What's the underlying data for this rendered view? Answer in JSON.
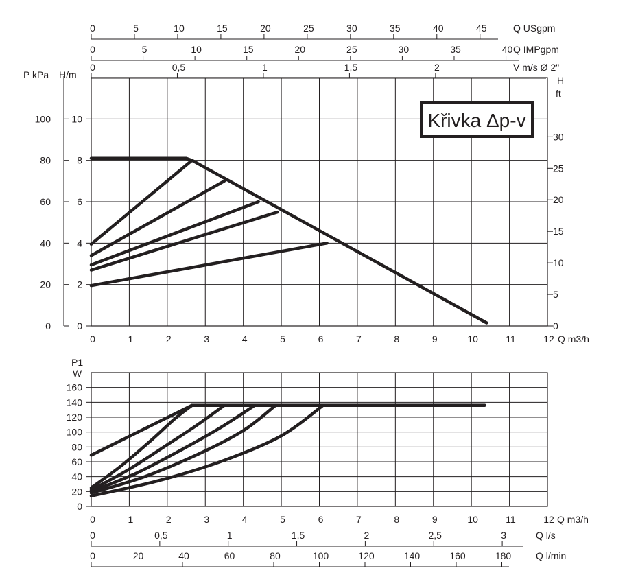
{
  "chart_data": [
    {
      "type": "line",
      "name": "pump-head-curve",
      "annotation": "Křivka Δp-v",
      "x_axis": {
        "label": "Q m3/h",
        "range": [
          0,
          12
        ],
        "ticks": [
          "0",
          "1",
          "2",
          "3",
          "4",
          "5",
          "6",
          "7",
          "8",
          "9",
          "10",
          "11",
          "12"
        ]
      },
      "y_axis_left_kpa": {
        "label": "P kPa",
        "range": [
          0,
          120
        ],
        "ticks": [
          "0",
          "20",
          "40",
          "60",
          "80",
          "100"
        ]
      },
      "y_axis_left_m": {
        "label": "H/m",
        "range": [
          0,
          12
        ],
        "ticks": [
          "0",
          "2",
          "4",
          "6",
          "8",
          "10"
        ]
      },
      "y_axis_right_ft": {
        "label_line1": "H",
        "label_line2": "ft",
        "range": [
          0,
          39.4
        ],
        "ticks": [
          "0",
          "5",
          "10",
          "15",
          "20",
          "25",
          "30"
        ]
      },
      "top_axes": [
        {
          "label": "Q USgpm",
          "range": [
            0,
            52.8
          ],
          "ticks": [
            "0",
            "5",
            "10",
            "15",
            "20",
            "25",
            "30",
            "35",
            "40",
            "45"
          ]
        },
        {
          "label": "Q IMPgpm",
          "range": [
            0,
            44
          ],
          "ticks": [
            "0",
            "5",
            "10",
            "15",
            "20",
            "25",
            "30",
            "35",
            "40"
          ]
        },
        {
          "label": "V m/s Ø 2\"",
          "range": [
            0,
            2.65
          ],
          "ticks": [
            "0",
            "0,5",
            "1",
            "1,5",
            "2"
          ]
        }
      ],
      "grid": true,
      "series": [
        {
          "x": [
            0,
            2.5,
            2.65,
            10.4
          ],
          "y": [
            8.1,
            8.1,
            8.0,
            0.15
          ]
        },
        {
          "x": [
            0,
            2.65
          ],
          "y": [
            3.95,
            8.0
          ]
        },
        {
          "x": [
            0,
            3.5
          ],
          "y": [
            3.4,
            7.0
          ]
        },
        {
          "x": [
            0,
            4.4
          ],
          "y": [
            2.95,
            6.0
          ]
        },
        {
          "x": [
            0,
            4.9
          ],
          "y": [
            2.7,
            5.5
          ]
        },
        {
          "x": [
            0,
            6.2
          ],
          "y": [
            1.95,
            4.0
          ]
        }
      ]
    },
    {
      "type": "line",
      "name": "pump-power-curve",
      "x_axis": {
        "label": "Q m3/h",
        "range": [
          0,
          12
        ],
        "ticks": [
          "0",
          "1",
          "2",
          "3",
          "4",
          "5",
          "6",
          "7",
          "8",
          "9",
          "10",
          "11",
          "12"
        ]
      },
      "y_axis": {
        "label_line1": "P1",
        "label_line2": "W",
        "range": [
          0,
          180
        ],
        "ticks": [
          "0",
          "20",
          "40",
          "60",
          "80",
          "100",
          "120",
          "140",
          "160"
        ]
      },
      "bottom_axes": [
        {
          "label": "Q l/s",
          "range": [
            0,
            3.33
          ],
          "ticks": [
            "0",
            "0,5",
            "1",
            "1,5",
            "2",
            "2,5",
            "3"
          ]
        },
        {
          "label": "Q l/min",
          "range": [
            0,
            200
          ],
          "ticks": [
            "0",
            "20",
            "40",
            "60",
            "80",
            "100",
            "120",
            "140",
            "160",
            "180"
          ]
        }
      ],
      "grid": true,
      "series": [
        {
          "x": [
            0,
            2.65
          ],
          "y": [
            69,
            136
          ]
        },
        {
          "x": [
            0,
            0.8,
            1.6,
            2.2,
            2.65
          ],
          "y": [
            25,
            55,
            90,
            118,
            136
          ]
        },
        {
          "x": [
            0,
            1.0,
            2.0,
            2.8,
            3.5
          ],
          "y": [
            22,
            50,
            83,
            110,
            136
          ]
        },
        {
          "x": [
            0,
            1.2,
            2.4,
            3.4,
            4.3
          ],
          "y": [
            20,
            45,
            77,
            106,
            136
          ]
        },
        {
          "x": [
            0,
            1.4,
            2.8,
            4.0,
            4.85
          ],
          "y": [
            18,
            40,
            70,
            102,
            136
          ]
        },
        {
          "x": [
            0,
            1.8,
            3.5,
            5.0,
            6.1
          ],
          "y": [
            14,
            35,
            62,
            95,
            136
          ]
        },
        {
          "x": [
            2.65,
            10.35
          ],
          "y": [
            136,
            136
          ]
        }
      ]
    }
  ]
}
